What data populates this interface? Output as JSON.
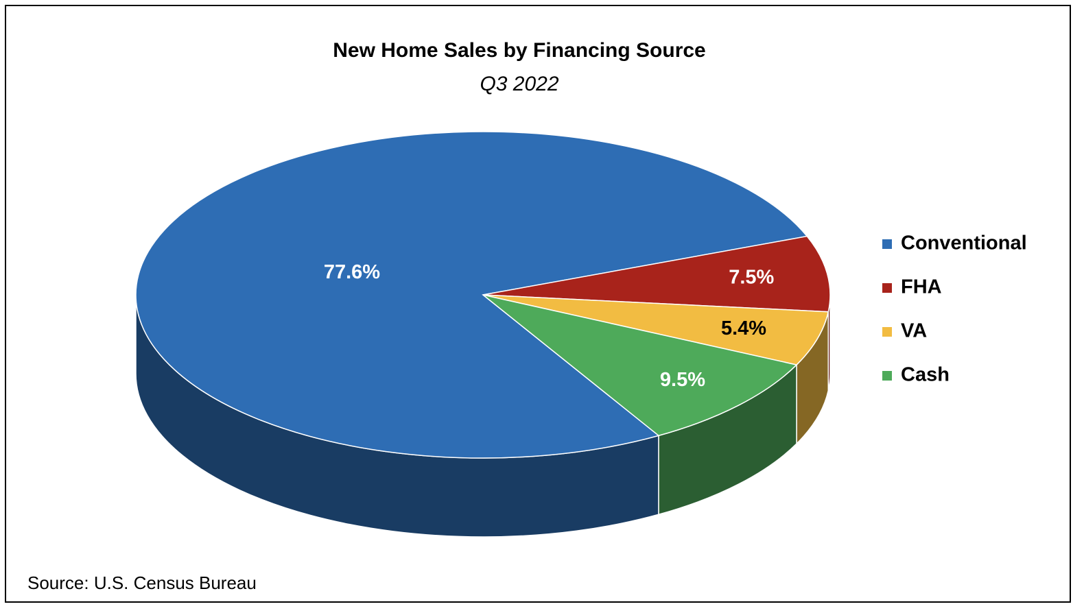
{
  "chart_data": {
    "type": "pie3d",
    "title": "New Home Sales by Financing Source",
    "subtitle": "Q3 2022",
    "source": "Source: U.S. Census Bureau",
    "categories": [
      "Conventional",
      "FHA",
      "VA",
      "Cash"
    ],
    "values": [
      77.6,
      7.5,
      5.4,
      9.5
    ],
    "value_labels": [
      "77.6%",
      "7.5%",
      "5.4%",
      "9.5%"
    ],
    "colors": [
      "#2e6db4",
      "#a8231b",
      "#f2bc42",
      "#4eaa5a"
    ],
    "legend": "right"
  }
}
